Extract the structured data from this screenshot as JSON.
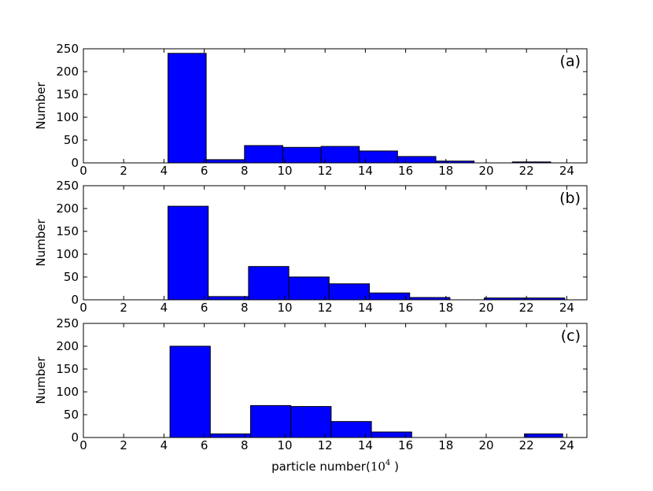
{
  "chart_data": [
    {
      "type": "bar",
      "panel_label": "(a)",
      "ylabel": "Number",
      "xlabel": "",
      "xlim": [
        0,
        25
      ],
      "ylim": [
        0,
        250
      ],
      "xticks": [
        "0",
        "2",
        "4",
        "6",
        "8",
        "10",
        "12",
        "14",
        "16",
        "18",
        "20",
        "22",
        "24"
      ],
      "yticks": [
        "0",
        "50",
        "100",
        "150",
        "200",
        "250"
      ],
      "bin_edges": [
        4.2,
        6.1,
        8.0,
        9.9,
        11.8,
        13.7,
        15.6,
        17.5,
        19.4,
        21.3,
        23.2
      ],
      "values": [
        240,
        7,
        38,
        34,
        36,
        26,
        14,
        4,
        0,
        2
      ],
      "bar_color": "#0000ff"
    },
    {
      "type": "bar",
      "panel_label": "(b)",
      "ylabel": "Number",
      "xlabel": "",
      "xlim": [
        0,
        25
      ],
      "ylim": [
        0,
        250
      ],
      "xticks": [
        "0",
        "2",
        "4",
        "6",
        "8",
        "10",
        "12",
        "14",
        "16",
        "18",
        "20",
        "22",
        "24"
      ],
      "yticks": [
        "0",
        "50",
        "100",
        "150",
        "200",
        "250"
      ],
      "bin_edges": [
        4.2,
        6.2,
        8.2,
        10.2,
        12.2,
        14.2,
        16.2,
        18.2,
        19.9,
        21.9,
        23.9
      ],
      "values": [
        205,
        7,
        73,
        50,
        35,
        15,
        5,
        0,
        4,
        4
      ],
      "bar_color": "#0000ff"
    },
    {
      "type": "bar",
      "panel_label": "(c)",
      "ylabel": "Number",
      "xlabel": "particle number(",
      "xlabel_base": "10",
      "xlabel_exp": "4",
      "xlabel_tail": " )",
      "xlim": [
        0,
        25
      ],
      "ylim": [
        0,
        250
      ],
      "xticks": [
        "0",
        "2",
        "4",
        "6",
        "8",
        "10",
        "12",
        "14",
        "16",
        "18",
        "20",
        "22",
        "24"
      ],
      "yticks": [
        "0",
        "50",
        "100",
        "150",
        "200",
        "250"
      ],
      "bin_edges": [
        4.3,
        6.3,
        8.3,
        10.3,
        12.3,
        14.3,
        16.3,
        18.2,
        20.0,
        21.9,
        23.8
      ],
      "values": [
        200,
        8,
        70,
        68,
        35,
        12,
        0,
        0,
        0,
        8
      ],
      "bar_color": "#0000ff"
    }
  ]
}
